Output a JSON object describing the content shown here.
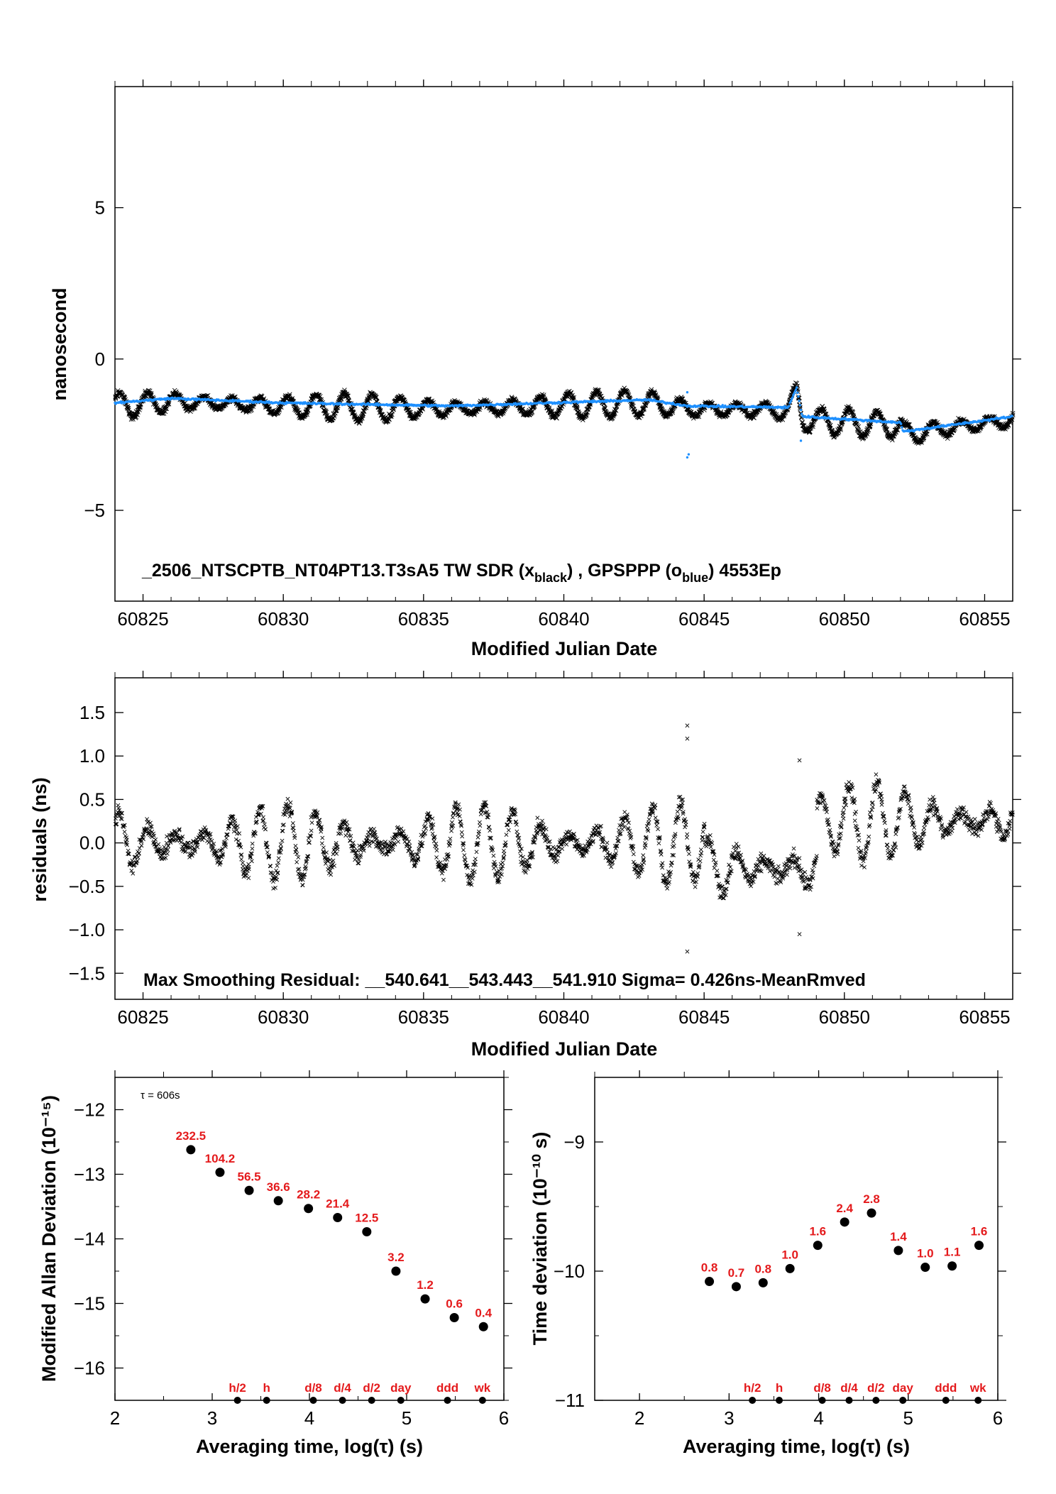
{
  "colors": {
    "tw": "#000000",
    "gps": "#1e90ff",
    "label": "#e41a1c"
  },
  "chart_data": [
    {
      "type": "scatter",
      "xlabel": "Modified Julian Date",
      "ylabel": "nanosecond",
      "xlim": [
        60824,
        60856
      ],
      "ylim": [
        -8,
        9
      ],
      "xticks": [
        "60825",
        "60830",
        "60835",
        "60840",
        "60845",
        "60850",
        "60855"
      ],
      "yticks": [
        "5",
        "0",
        "−5"
      ],
      "annotation_parts": [
        "_2506_NTSCPTB_NT04PT13.T3sA5     TW SDR (x",
        "black",
        ") ,  GPSPPP (o",
        "blue",
        ")  4553Ep"
      ],
      "series": [
        {
          "name": "TW SDR",
          "marker": "x",
          "color": "#000000",
          "mean": -1.6,
          "oscillation_amplitude": 0.45,
          "oscillation_period_days": 1.0
        },
        {
          "name": "GPSPPP",
          "marker": "o",
          "color": "#1e90ff",
          "trend": [
            [
              60824,
              -1.45
            ],
            [
              60826,
              -1.3
            ],
            [
              60830,
              -1.45
            ],
            [
              60836,
              -1.55
            ],
            [
              60843,
              -1.35
            ],
            [
              60844.4,
              -1.55
            ],
            [
              60848,
              -1.6
            ],
            [
              60848.3,
              -0.95
            ],
            [
              60848.5,
              -1.9
            ],
            [
              60852,
              -2.1
            ],
            [
              60852.1,
              -2.4
            ],
            [
              60856,
              -1.9
            ]
          ]
        }
      ]
    },
    {
      "type": "scatter",
      "xlabel": "Modified Julian Date",
      "ylabel": "residuals (ns)",
      "xlim": [
        60824,
        60856
      ],
      "ylim": [
        -1.8,
        1.9
      ],
      "xticks": [
        "60825",
        "60830",
        "60835",
        "60840",
        "60845",
        "60850",
        "60855"
      ],
      "yticks": [
        "1.5",
        "1.0",
        "0.5",
        "0.0",
        "−0.5",
        "−1.0",
        "−1.5"
      ],
      "annotation": "Max Smoothing Residual: __540.641__543.443__541.910  Sigma= 0.426ns-MeanRmved",
      "sigma_ns": 0.426
    },
    {
      "type": "scatter",
      "xlabel": "Averaging time, log(τ) (s)",
      "ylabel": "Modified Allan Deviation (10⁻¹⁵)",
      "xlim": [
        2,
        6
      ],
      "ylim": [
        -16.5,
        -11.5
      ],
      "xticks": [
        "2",
        "3",
        "4",
        "5",
        "6"
      ],
      "yticks": [
        "−12",
        "−13",
        "−14",
        "−15",
        "−16"
      ],
      "tau_label": "τ = 606s",
      "points": [
        {
          "x": 2.78,
          "y": -12.62,
          "label": "232.5"
        },
        {
          "x": 3.08,
          "y": -12.97,
          "label": "104.2"
        },
        {
          "x": 3.38,
          "y": -13.25,
          "label": "56.5"
        },
        {
          "x": 3.68,
          "y": -13.41,
          "label": "36.6"
        },
        {
          "x": 3.99,
          "y": -13.53,
          "label": "28.2"
        },
        {
          "x": 4.29,
          "y": -13.67,
          "label": "21.4"
        },
        {
          "x": 4.59,
          "y": -13.89,
          "label": "12.5"
        },
        {
          "x": 4.89,
          "y": -14.5,
          "label": "3.2"
        },
        {
          "x": 5.19,
          "y": -14.93,
          "label": "1.2"
        },
        {
          "x": 5.49,
          "y": -15.22,
          "label": "0.6"
        },
        {
          "x": 5.79,
          "y": -15.36,
          "label": "0.4"
        }
      ],
      "markers": [
        {
          "x": 3.26,
          "label": "h/2"
        },
        {
          "x": 3.56,
          "label": "h"
        },
        {
          "x": 4.04,
          "label": "d/8"
        },
        {
          "x": 4.34,
          "label": "d/4"
        },
        {
          "x": 4.64,
          "label": "d/2"
        },
        {
          "x": 4.94,
          "label": "day"
        },
        {
          "x": 5.42,
          "label": "ddd"
        },
        {
          "x": 5.78,
          "label": "wk"
        }
      ]
    },
    {
      "type": "scatter",
      "xlabel": "Averaging time, log(τ) (s)",
      "ylabel": "Time deviation (10⁻¹⁰ s)",
      "xlim": [
        1.5,
        6.0
      ],
      "ylim": [
        -11,
        -8.5
      ],
      "xticks": [
        "2",
        "3",
        "4",
        "5",
        "6"
      ],
      "yticks": [
        "−9",
        "−10",
        "−11"
      ],
      "points": [
        {
          "x": 2.78,
          "y": -10.08,
          "label": "0.8"
        },
        {
          "x": 3.08,
          "y": -10.12,
          "label": "0.7"
        },
        {
          "x": 3.38,
          "y": -10.09,
          "label": "0.8"
        },
        {
          "x": 3.68,
          "y": -9.98,
          "label": "1.0"
        },
        {
          "x": 3.99,
          "y": -9.8,
          "label": "1.6"
        },
        {
          "x": 4.29,
          "y": -9.62,
          "label": "2.4"
        },
        {
          "x": 4.59,
          "y": -9.55,
          "label": "2.8"
        },
        {
          "x": 4.89,
          "y": -9.84,
          "label": "1.4"
        },
        {
          "x": 5.19,
          "y": -9.97,
          "label": "1.0"
        },
        {
          "x": 5.49,
          "y": -9.96,
          "label": "1.1"
        },
        {
          "x": 5.79,
          "y": -9.8,
          "label": "1.6"
        }
      ],
      "markers": [
        {
          "x": 3.26,
          "label": "h/2"
        },
        {
          "x": 3.56,
          "label": "h"
        },
        {
          "x": 4.04,
          "label": "d/8"
        },
        {
          "x": 4.34,
          "label": "d/4"
        },
        {
          "x": 4.64,
          "label": "d/2"
        },
        {
          "x": 4.94,
          "label": "day"
        },
        {
          "x": 5.42,
          "label": "ddd"
        },
        {
          "x": 5.78,
          "label": "wk"
        }
      ]
    }
  ]
}
